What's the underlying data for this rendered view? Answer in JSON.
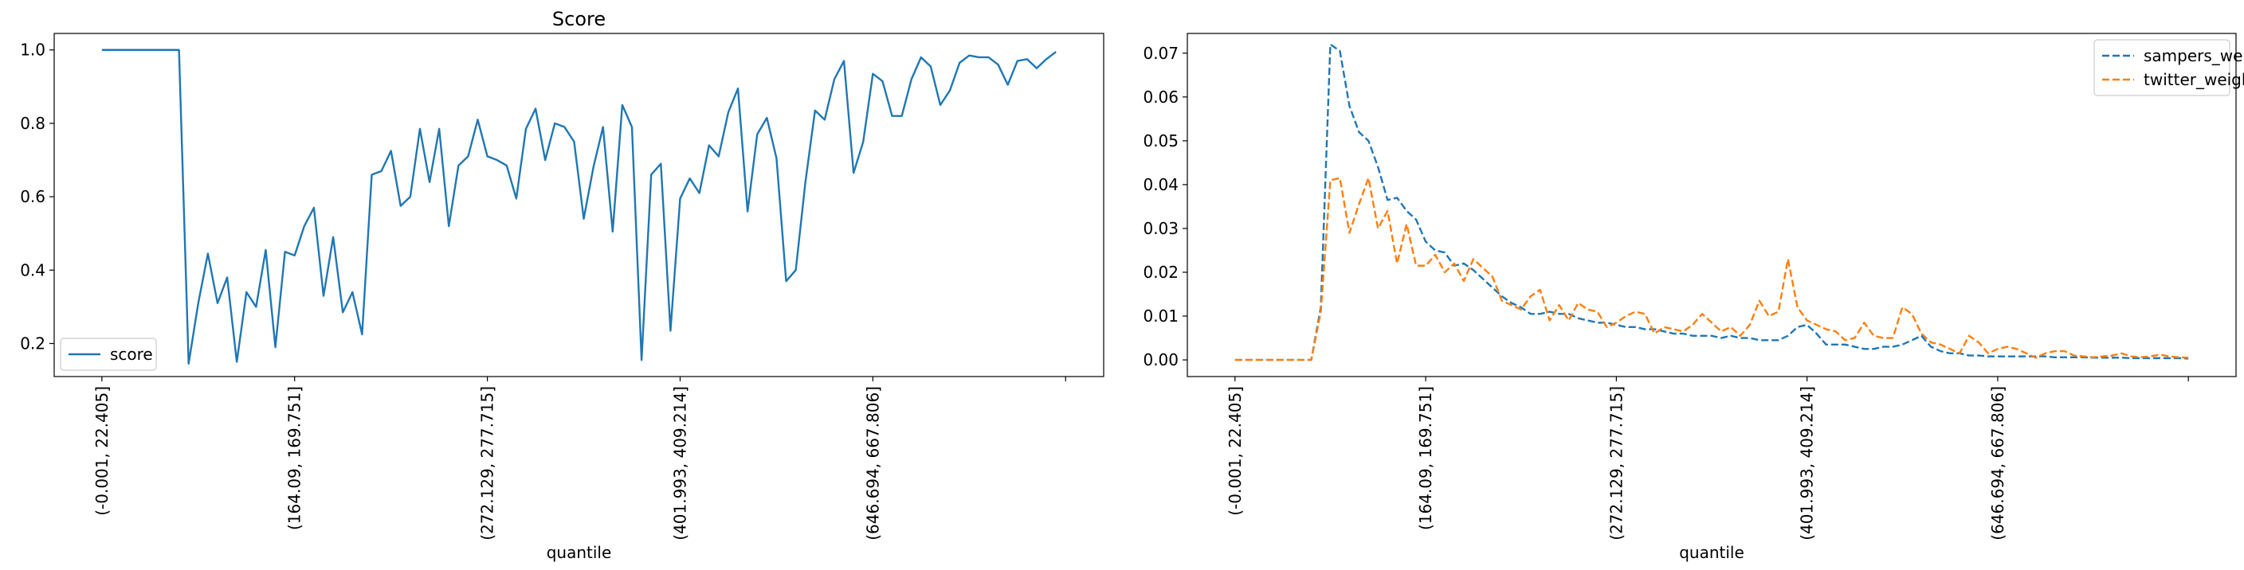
{
  "chart_data": [
    {
      "type": "line",
      "title": "Score",
      "xlabel": "quantile",
      "ylabel": "",
      "ylim": [
        0.11,
        1.045
      ],
      "yticks": [
        0.2,
        0.4,
        0.6,
        0.8,
        1.0
      ],
      "ytick_labels": [
        "0.2",
        "0.4",
        "0.6",
        "0.8",
        "1.0"
      ],
      "xticks": [
        0,
        20,
        40,
        60,
        80,
        100
      ],
      "xtick_labels": [
        "(-0.001, 22.405]",
        "(164.09, 169.751]",
        "(272.129, 277.715]",
        "(401.993, 409.214]",
        "(646.694, 667.806]",
        ""
      ],
      "legend_position": "lower left",
      "grid": false,
      "series": [
        {
          "name": "score",
          "color": "#1f77b4",
          "dash": "solid",
          "values": [
            1.0,
            1.0,
            1.0,
            1.0,
            1.0,
            1.0,
            1.0,
            1.0,
            1.0,
            0.145,
            0.31,
            0.445,
            0.31,
            0.38,
            0.15,
            0.34,
            0.3,
            0.455,
            0.19,
            0.45,
            0.44,
            0.52,
            0.57,
            0.33,
            0.49,
            0.285,
            0.34,
            0.225,
            0.66,
            0.67,
            0.725,
            0.575,
            0.6,
            0.785,
            0.64,
            0.785,
            0.52,
            0.685,
            0.71,
            0.81,
            0.71,
            0.7,
            0.685,
            0.595,
            0.785,
            0.84,
            0.7,
            0.8,
            0.79,
            0.75,
            0.54,
            0.68,
            0.79,
            0.505,
            0.85,
            0.79,
            0.155,
            0.66,
            0.69,
            0.235,
            0.595,
            0.65,
            0.61,
            0.74,
            0.71,
            0.83,
            0.895,
            0.56,
            0.77,
            0.815,
            0.705,
            0.37,
            0.4,
            0.64,
            0.835,
            0.81,
            0.92,
            0.97,
            0.665,
            0.75,
            0.935,
            0.915,
            0.82,
            0.82,
            0.92,
            0.98,
            0.955,
            0.85,
            0.89,
            0.965,
            0.985,
            0.98,
            0.98,
            0.96,
            0.905,
            0.97,
            0.975,
            0.95,
            0.975,
            0.995
          ]
        }
      ]
    },
    {
      "type": "line",
      "title": "",
      "xlabel": "quantile",
      "ylabel": "",
      "ylim": [
        -0.0038,
        0.0745
      ],
      "yticks": [
        0.0,
        0.01,
        0.02,
        0.03,
        0.04,
        0.05,
        0.06,
        0.07
      ],
      "ytick_labels": [
        "0.00",
        "0.01",
        "0.02",
        "0.03",
        "0.04",
        "0.05",
        "0.06",
        "0.07"
      ],
      "xticks": [
        0,
        20,
        40,
        60,
        80,
        100
      ],
      "xtick_labels": [
        "(-0.001, 22.405]",
        "(164.09, 169.751]",
        "(272.129, 277.715]",
        "(401.993, 409.214]",
        "(646.694, 667.806]",
        ""
      ],
      "legend_position": "upper right",
      "grid": false,
      "series": [
        {
          "name": "sampers_weight",
          "color": "#1f77b4",
          "dash": "dashed",
          "values": [
            0,
            0,
            0,
            0,
            0,
            0,
            0,
            0,
            0,
            0.012,
            0.072,
            0.0705,
            0.058,
            0.052,
            0.05,
            0.044,
            0.0365,
            0.037,
            0.034,
            0.032,
            0.027,
            0.025,
            0.0245,
            0.0215,
            0.022,
            0.0205,
            0.0185,
            0.0165,
            0.0145,
            0.013,
            0.012,
            0.0105,
            0.0105,
            0.011,
            0.0105,
            0.0105,
            0.0095,
            0.009,
            0.0085,
            0.0085,
            0.008,
            0.0075,
            0.0075,
            0.007,
            0.007,
            0.0065,
            0.006,
            0.006,
            0.0055,
            0.0055,
            0.0055,
            0.005,
            0.0055,
            0.005,
            0.005,
            0.0045,
            0.0045,
            0.0045,
            0.0055,
            0.0075,
            0.008,
            0.006,
            0.0035,
            0.0035,
            0.0035,
            0.003,
            0.0025,
            0.0025,
            0.003,
            0.003,
            0.0035,
            0.0045,
            0.0055,
            0.003,
            0.002,
            0.0015,
            0.0015,
            0.001,
            0.001,
            0.0008,
            0.0008,
            0.0008,
            0.0008,
            0.0008,
            0.0008,
            0.0008,
            0.0006,
            0.0006,
            0.0006,
            0.0006,
            0.0005,
            0.0005,
            0.0005,
            0.0005,
            0.0004,
            0.0004,
            0.0004,
            0.0004,
            0.0004,
            0.0004,
            0.0003
          ]
        },
        {
          "name": "twitter_weight",
          "color": "#ff7f0e",
          "dash": "dashed",
          "values": [
            0,
            0,
            0,
            0,
            0,
            0,
            0,
            0,
            0,
            0.011,
            0.041,
            0.0415,
            0.029,
            0.0355,
            0.0415,
            0.03,
            0.034,
            0.022,
            0.031,
            0.0215,
            0.0215,
            0.024,
            0.02,
            0.022,
            0.018,
            0.023,
            0.021,
            0.019,
            0.0135,
            0.0125,
            0.0115,
            0.0145,
            0.016,
            0.009,
            0.0125,
            0.009,
            0.013,
            0.0115,
            0.011,
            0.0075,
            0.0085,
            0.01,
            0.011,
            0.0105,
            0.006,
            0.0075,
            0.007,
            0.0065,
            0.008,
            0.0105,
            0.0085,
            0.0065,
            0.0075,
            0.0055,
            0.008,
            0.0135,
            0.01,
            0.011,
            0.023,
            0.012,
            0.009,
            0.008,
            0.007,
            0.0065,
            0.0045,
            0.005,
            0.0085,
            0.0055,
            0.005,
            0.005,
            0.012,
            0.0105,
            0.006,
            0.004,
            0.0035,
            0.0025,
            0.0015,
            0.0055,
            0.004,
            0.0015,
            0.0025,
            0.003,
            0.0025,
            0.0015,
            0.0005,
            0.0015,
            0.002,
            0.002,
            0.001,
            0.0008,
            0.0006,
            0.0008,
            0.001,
            0.0015,
            0.0008,
            0.0006,
            0.0008,
            0.0012,
            0.0008,
            0.0006,
            0.0005
          ]
        }
      ]
    }
  ]
}
